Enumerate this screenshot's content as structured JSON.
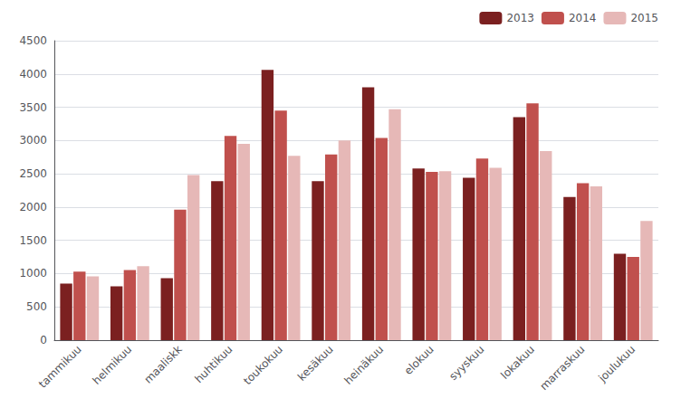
{
  "chart_data": {
    "type": "bar",
    "categories": [
      "tammikuu",
      "helmikuu",
      "maaliskk",
      "huhtikuu",
      "toukokuu",
      "kesäkuu",
      "heinäkuu",
      "elokuu",
      "syyskuu",
      "lokakuu",
      "marraskuu",
      "joulukuu"
    ],
    "series": [
      {
        "name": "2013",
        "color": "#7B2020",
        "values": [
          850,
          810,
          930,
          2390,
          4060,
          2390,
          3800,
          2580,
          2440,
          3350,
          2150,
          1300
        ]
      },
      {
        "name": "2014",
        "color": "#C0504D",
        "values": [
          1030,
          1055,
          1960,
          3070,
          3450,
          2790,
          3040,
          2530,
          2730,
          3560,
          2360,
          1250
        ]
      },
      {
        "name": "2015",
        "color": "#E6B8B7",
        "values": [
          960,
          1110,
          2480,
          2950,
          2770,
          3000,
          3470,
          2540,
          2590,
          2840,
          2310,
          1790
        ]
      }
    ],
    "ylim": [
      0,
      4500
    ],
    "yticks": [
      0,
      500,
      1000,
      1500,
      2000,
      2500,
      3000,
      3500,
      4000,
      4500
    ],
    "grid": true,
    "legend": "upper right"
  }
}
